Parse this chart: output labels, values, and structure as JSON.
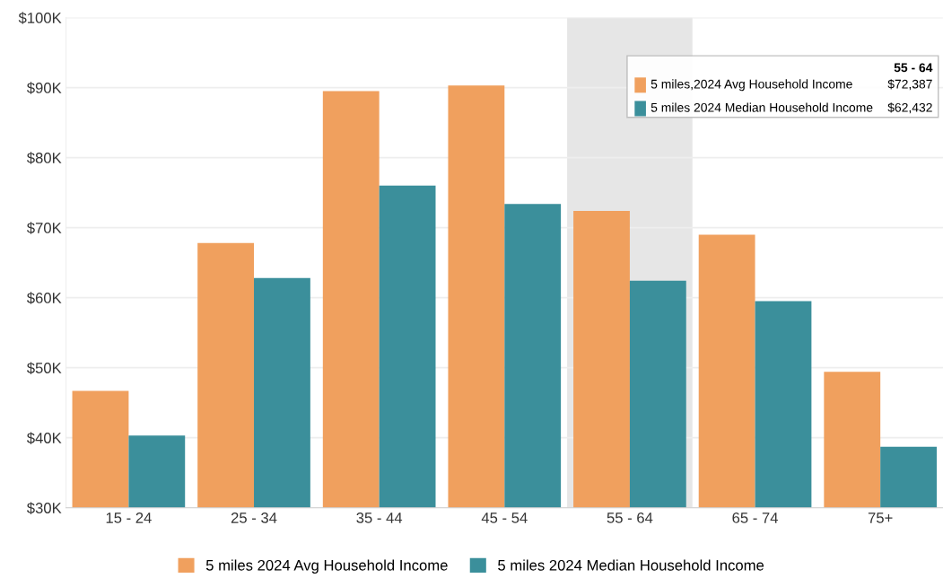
{
  "chart_data": {
    "type": "bar",
    "categories": [
      "15 - 24",
      "25 - 34",
      "35 - 44",
      "45 - 54",
      "55 - 64",
      "65 - 74",
      "75+"
    ],
    "series": [
      {
        "name": "5 miles 2024 Avg Household Income",
        "color": "#f0a05e",
        "values": [
          46.7,
          67.8,
          89.5,
          90.3,
          72.387,
          69.0,
          49.4
        ]
      },
      {
        "name": "5 miles 2024 Median Household Income",
        "color": "#3b8f9b",
        "values": [
          40.3,
          62.8,
          76.0,
          73.4,
          62.432,
          59.5,
          38.7
        ]
      }
    ],
    "ylim": [
      30,
      100
    ],
    "yticks": [
      {
        "value": 30,
        "label": "$30K"
      },
      {
        "value": 40,
        "label": "$40K"
      },
      {
        "value": 50,
        "label": "$50K"
      },
      {
        "value": 60,
        "label": "$60K"
      },
      {
        "value": 70,
        "label": "$70K"
      },
      {
        "value": 80,
        "label": "$80K"
      },
      {
        "value": 90,
        "label": "$90K"
      },
      {
        "value": 100,
        "label": "$100K"
      }
    ],
    "bands": [
      {
        "axis": "x",
        "from": "55 - 64",
        "to": "55 - 64",
        "color": "#e6e6e6"
      }
    ],
    "annotations": [
      "55 - 64",
      "5 miles,2024 Avg Household Income",
      "$72,387",
      "5 miles 2024 Median Household Income",
      "$62,432"
    ],
    "grid": "y",
    "legend": "bottom"
  }
}
